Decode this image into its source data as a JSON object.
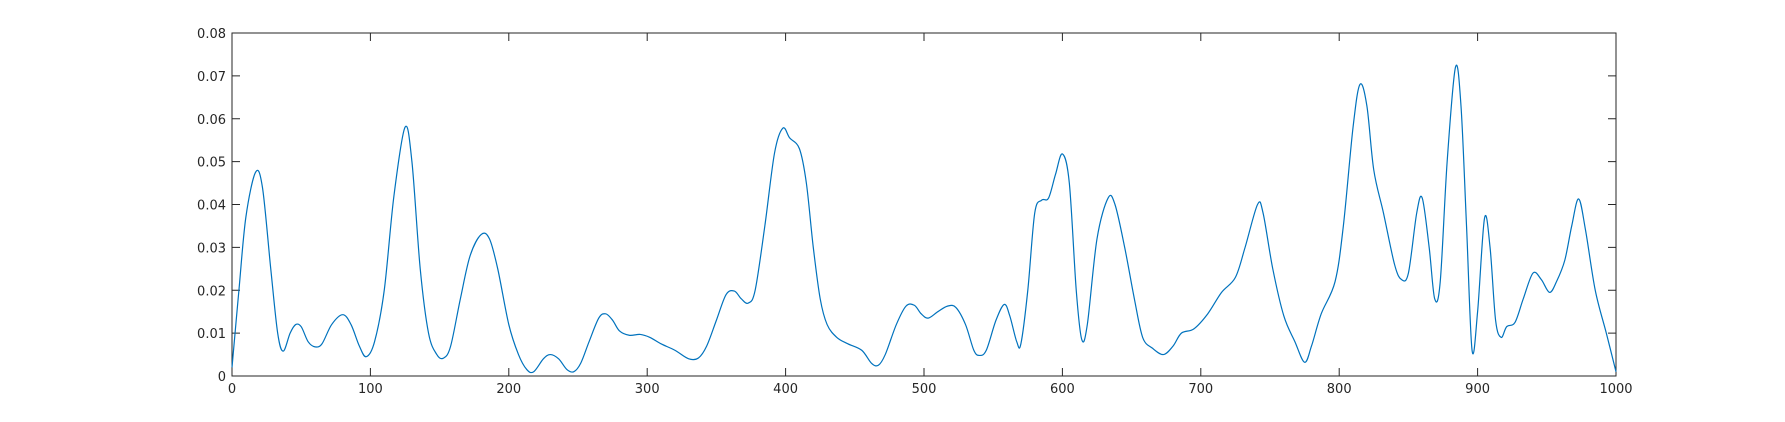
{
  "chart_data": {
    "type": "line",
    "x": [
      0,
      5,
      10,
      17,
      22,
      28,
      33,
      37,
      42,
      46,
      50,
      55,
      60,
      65,
      72,
      80,
      86,
      92,
      97,
      103,
      110,
      117,
      125,
      130,
      136,
      142,
      148,
      153,
      158,
      165,
      172,
      180,
      186,
      192,
      200,
      207,
      213,
      218,
      225,
      230,
      236,
      242,
      247,
      252,
      258,
      265,
      270,
      275,
      280,
      287,
      295,
      302,
      310,
      320,
      330,
      337,
      343,
      350,
      357,
      363,
      368,
      373,
      378,
      385,
      392,
      398,
      403,
      410,
      415,
      420,
      425,
      430,
      437,
      445,
      455,
      462,
      467,
      472,
      480,
      487,
      493,
      498,
      503,
      510,
      517,
      523,
      530,
      536,
      540,
      545,
      552,
      558,
      562,
      567,
      570,
      575,
      580,
      585,
      590,
      595,
      600,
      605,
      610,
      614,
      618,
      625,
      633,
      638,
      645,
      652,
      658,
      665,
      673,
      680,
      686,
      695,
      705,
      715,
      725,
      732,
      741,
      745,
      752,
      760,
      768,
      775,
      780,
      787,
      797,
      803,
      810,
      815,
      820,
      825,
      832,
      840,
      845,
      850,
      856,
      860,
      865,
      869,
      873,
      878,
      884,
      888,
      892,
      896,
      900,
      905,
      909,
      913,
      917,
      921,
      927,
      933,
      940,
      946,
      952,
      957,
      963,
      968,
      973,
      978,
      985,
      993,
      1000
    ],
    "series": [
      {
        "color": "#0072bd",
        "values": [
          0.002,
          0.02,
          0.037,
          0.0475,
          0.044,
          0.025,
          0.01,
          0.0058,
          0.01,
          0.012,
          0.0115,
          0.008,
          0.0068,
          0.0075,
          0.012,
          0.0143,
          0.012,
          0.007,
          0.0045,
          0.008,
          0.02,
          0.042,
          0.058,
          0.05,
          0.025,
          0.01,
          0.005,
          0.0042,
          0.007,
          0.018,
          0.028,
          0.033,
          0.032,
          0.025,
          0.012,
          0.005,
          0.0015,
          0.001,
          0.004,
          0.005,
          0.004,
          0.0015,
          0.001,
          0.003,
          0.008,
          0.0135,
          0.0145,
          0.013,
          0.0105,
          0.0095,
          0.0097,
          0.009,
          0.0075,
          0.006,
          0.004,
          0.0042,
          0.007,
          0.013,
          0.019,
          0.0198,
          0.018,
          0.017,
          0.02,
          0.035,
          0.052,
          0.0578,
          0.0555,
          0.053,
          0.045,
          0.03,
          0.018,
          0.012,
          0.009,
          0.0075,
          0.006,
          0.003,
          0.0025,
          0.005,
          0.012,
          0.0163,
          0.0165,
          0.0145,
          0.0135,
          0.015,
          0.0163,
          0.016,
          0.012,
          0.006,
          0.0048,
          0.006,
          0.013,
          0.0167,
          0.014,
          0.008,
          0.0075,
          0.02,
          0.038,
          0.041,
          0.0415,
          0.047,
          0.0518,
          0.045,
          0.02,
          0.0085,
          0.012,
          0.032,
          0.0415,
          0.04,
          0.03,
          0.018,
          0.009,
          0.0065,
          0.005,
          0.007,
          0.01,
          0.011,
          0.0145,
          0.0195,
          0.023,
          0.03,
          0.04,
          0.038,
          0.025,
          0.014,
          0.008,
          0.0032,
          0.007,
          0.0145,
          0.022,
          0.035,
          0.058,
          0.068,
          0.063,
          0.048,
          0.038,
          0.026,
          0.0225,
          0.024,
          0.038,
          0.0415,
          0.03,
          0.018,
          0.022,
          0.05,
          0.072,
          0.063,
          0.035,
          0.006,
          0.015,
          0.0368,
          0.03,
          0.013,
          0.009,
          0.0115,
          0.0125,
          0.018,
          0.024,
          0.0225,
          0.0195,
          0.022,
          0.027,
          0.035,
          0.0413,
          0.034,
          0.02,
          0.01,
          0.001
        ]
      }
    ],
    "xlim": [
      0,
      1000
    ],
    "xticks": [
      0,
      100,
      200,
      300,
      400,
      500,
      600,
      700,
      800,
      900,
      1000
    ],
    "ylim": [
      0,
      0.08
    ],
    "yticks": [
      0,
      0.01,
      0.02,
      0.03,
      0.04,
      0.05,
      0.06,
      0.07,
      0.08
    ]
  }
}
